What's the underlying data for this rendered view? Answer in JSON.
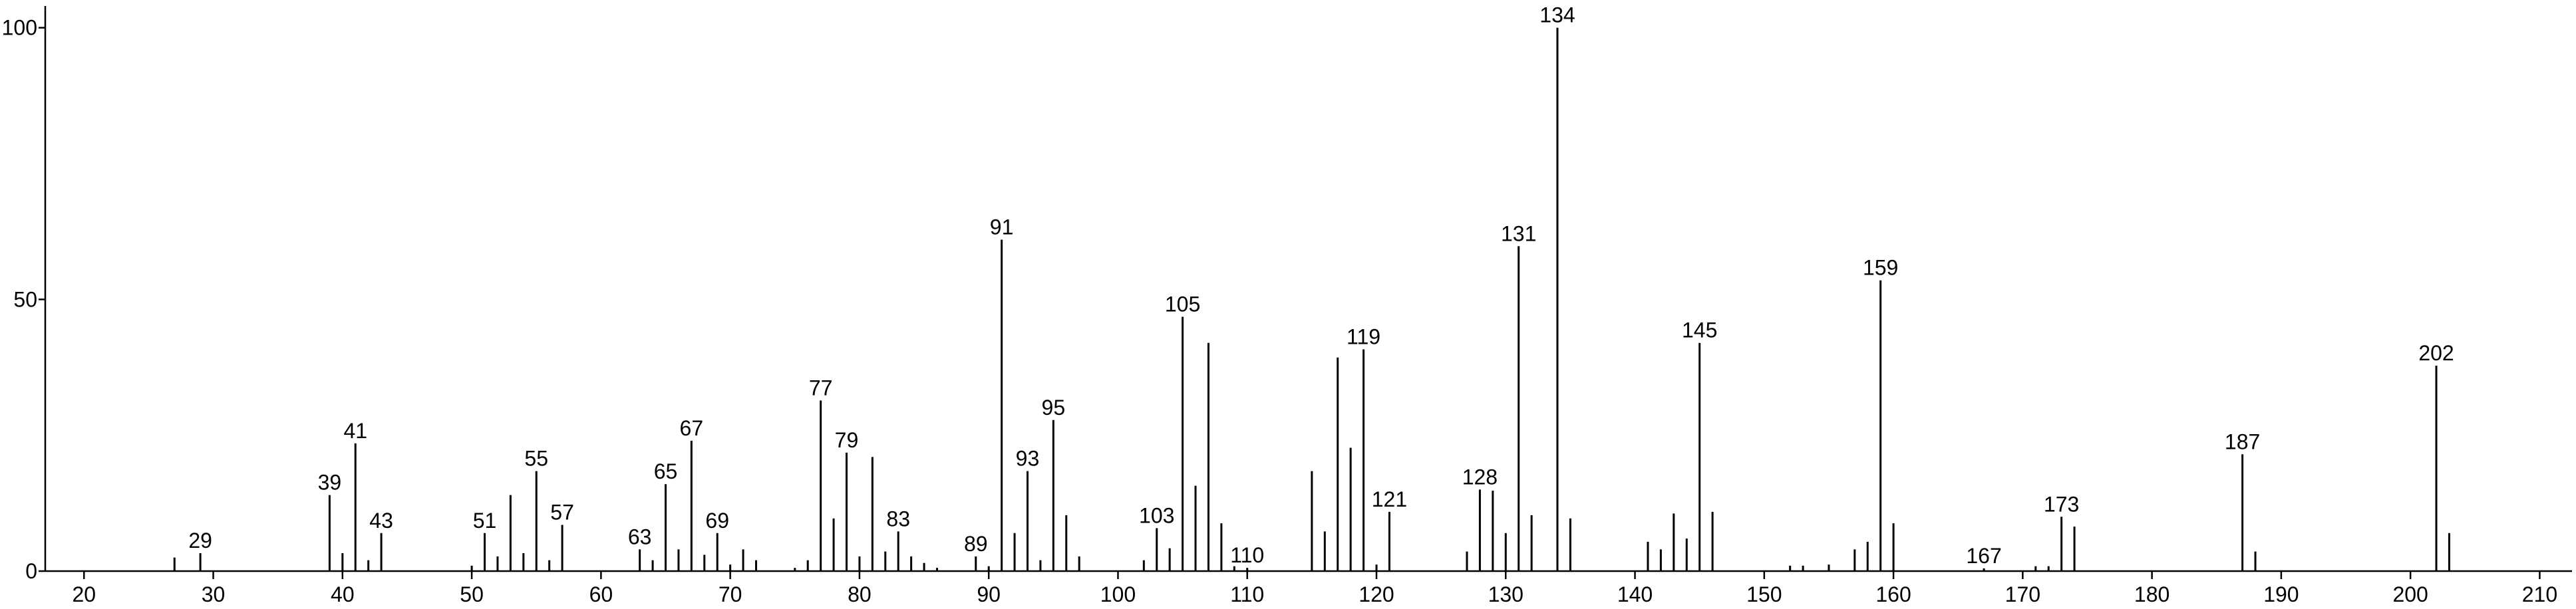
{
  "chart_data": {
    "type": "stem",
    "x": [
      27,
      29,
      39,
      40,
      41,
      42,
      43,
      50,
      51,
      52,
      53,
      54,
      55,
      56,
      57,
      63,
      64,
      65,
      66,
      67,
      68,
      69,
      70,
      71,
      72,
      75,
      76,
      77,
      78,
      79,
      80,
      81,
      82,
      83,
      84,
      85,
      86,
      89,
      90,
      91,
      92,
      93,
      94,
      95,
      96,
      97,
      102,
      103,
      104,
      105,
      106,
      107,
      108,
      109,
      110,
      115,
      116,
      117,
      118,
      119,
      120,
      121,
      127,
      128,
      129,
      130,
      131,
      132,
      134,
      135,
      141,
      142,
      143,
      144,
      145,
      146,
      152,
      153,
      155,
      157,
      158,
      159,
      160,
      167,
      171,
      172,
      173,
      174,
      187,
      188,
      202,
      203
    ],
    "values": [
      2.5,
      3.3,
      14,
      3.3,
      23.5,
      2,
      7,
      1,
      7,
      2.7,
      14,
      3.3,
      18.4,
      2,
      8.5,
      4,
      2,
      16,
      4,
      24,
      3,
      7,
      1.2,
      4,
      2,
      0.6,
      2,
      31.4,
      9.7,
      21.8,
      2.7,
      21,
      3.6,
      7.3,
      2.7,
      1.5,
      0.6,
      2.7,
      0.9,
      61,
      7,
      18.4,
      2,
      27.8,
      10.3,
      2.7,
      2,
      7.9,
      4.2,
      46.8,
      15.7,
      42,
      8.8,
      0.9,
      0.6,
      18.4,
      7.3,
      39.3,
      22.7,
      40.8,
      1.2,
      10.9,
      3.6,
      15,
      14.8,
      7,
      59.8,
      10.3,
      100,
      9.7,
      5.4,
      4,
      10.6,
      6,
      42,
      10.9,
      1,
      1,
      1.2,
      4,
      5.4,
      53.5,
      8.8,
      0.5,
      0.9,
      0.9,
      10,
      8.2,
      21.5,
      3.6,
      37.8,
      7
    ],
    "labels": [
      29,
      39,
      41,
      43,
      51,
      55,
      57,
      63,
      65,
      67,
      69,
      77,
      79,
      83,
      89,
      91,
      93,
      95,
      103,
      105,
      110,
      119,
      121,
      128,
      131,
      134,
      145,
      159,
      167,
      173,
      187,
      202
    ],
    "color": "#000000",
    "xlim": [
      17,
      212.5
    ],
    "ylim": [
      0,
      104
    ],
    "xticks": [
      20,
      30,
      40,
      50,
      60,
      70,
      80,
      90,
      100,
      110,
      120,
      130,
      140,
      150,
      160,
      170,
      180,
      190,
      200,
      210
    ],
    "yticks": [
      0,
      50,
      100
    ]
  }
}
